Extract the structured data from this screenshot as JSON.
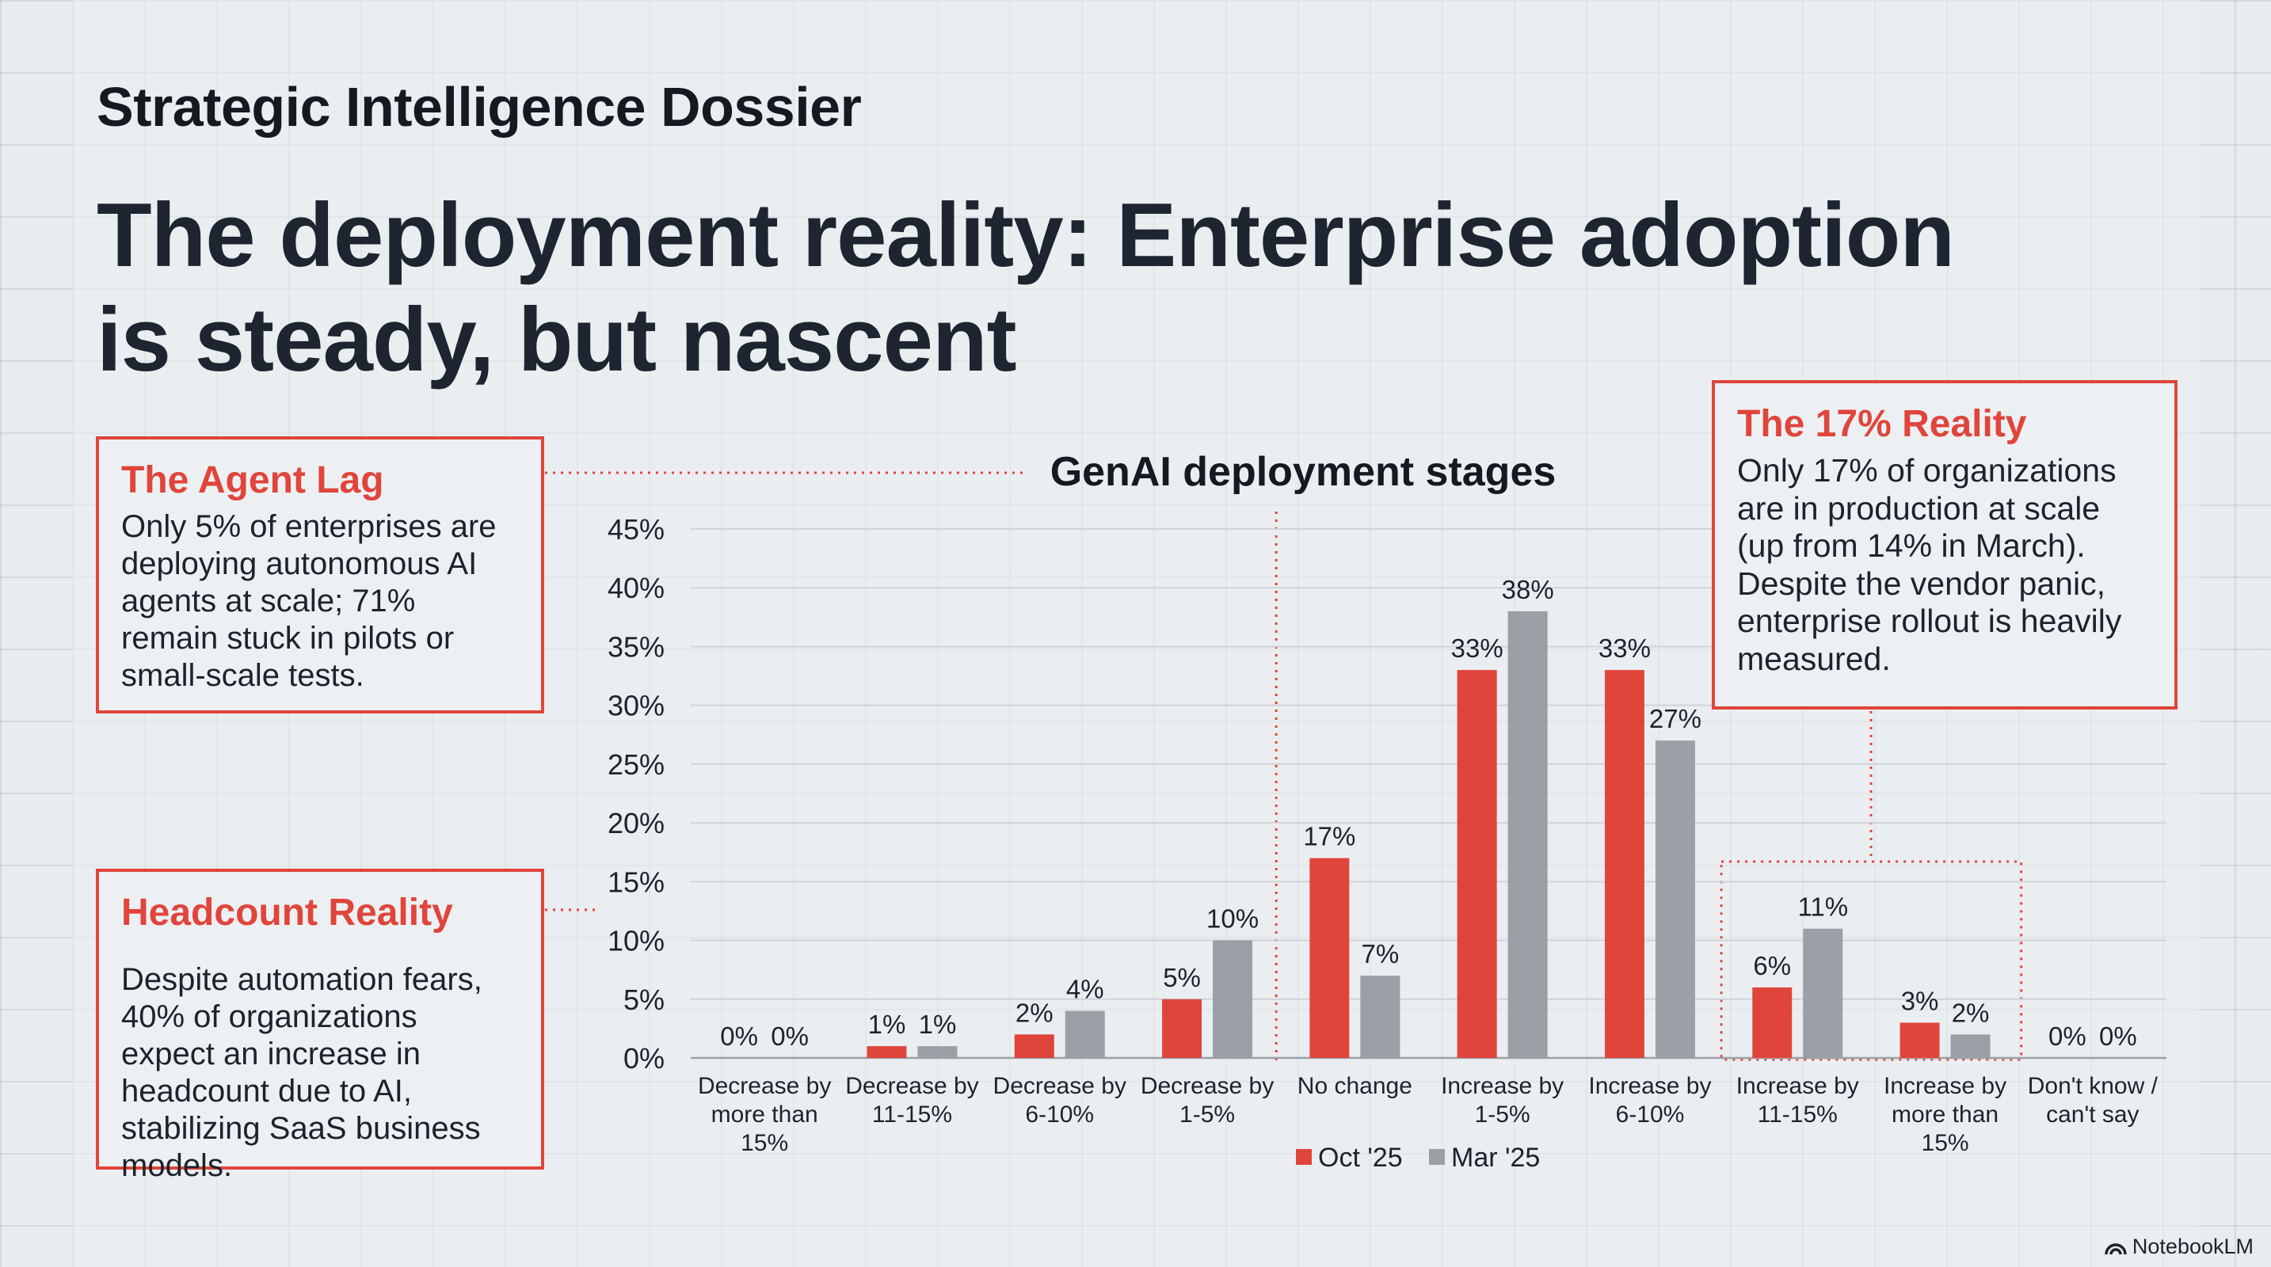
{
  "header": {
    "eyebrow": "Strategic Intelligence Dossier",
    "headline": "The deployment reality: Enterprise adoption is steady, but nascent"
  },
  "callouts": {
    "agent_lag": {
      "title": "The Agent Lag",
      "body": "Only 5% of enterprises are deploying autonomous AI agents at scale; 71% remain stuck in pilots or small-scale tests."
    },
    "headcount": {
      "title": "Headcount Reality",
      "body": "Despite automation fears, 40% of organizations expect an increase in headcount due to AI, stabilizing SaaS business models."
    },
    "reality_17": {
      "title": "The 17% Reality",
      "body": "Only 17% of organizations are in production at scale (up from 14% in March). Despite the vendor panic, enterprise rollout is heavily measured."
    }
  },
  "chart_data": {
    "type": "bar",
    "title": "GenAI deployment stages",
    "categories": [
      [
        "Decrease by",
        "more than",
        "15%"
      ],
      [
        "Decrease by",
        "11-15%"
      ],
      [
        "Decrease by",
        "6-10%"
      ],
      [
        "Decrease by",
        "1-5%"
      ],
      [
        "No change"
      ],
      [
        "Increase by",
        "1-5%"
      ],
      [
        "Increase by",
        "6-10%"
      ],
      [
        "Increase by",
        "11-15%"
      ],
      [
        "Increase by",
        "more than",
        "15%"
      ],
      [
        "Don't know /",
        "can't say"
      ]
    ],
    "series": [
      {
        "name": "Oct '25",
        "color": "#e0453b",
        "values": [
          0,
          1,
          2,
          5,
          17,
          33,
          33,
          6,
          3,
          0
        ]
      },
      {
        "name": "Mar '25",
        "color": "#9ba0a6",
        "values": [
          0,
          1,
          4,
          10,
          7,
          38,
          27,
          11,
          2,
          0
        ]
      }
    ],
    "ylim": [
      0,
      45
    ],
    "yticks": [
      0,
      5,
      10,
      15,
      20,
      25,
      30,
      35,
      40,
      45
    ],
    "tick_suffix": "%",
    "grid": true,
    "legend": "bottom-center"
  },
  "brand": {
    "label": "NotebookLM",
    "icon": "notebooklm-logo-icon"
  }
}
